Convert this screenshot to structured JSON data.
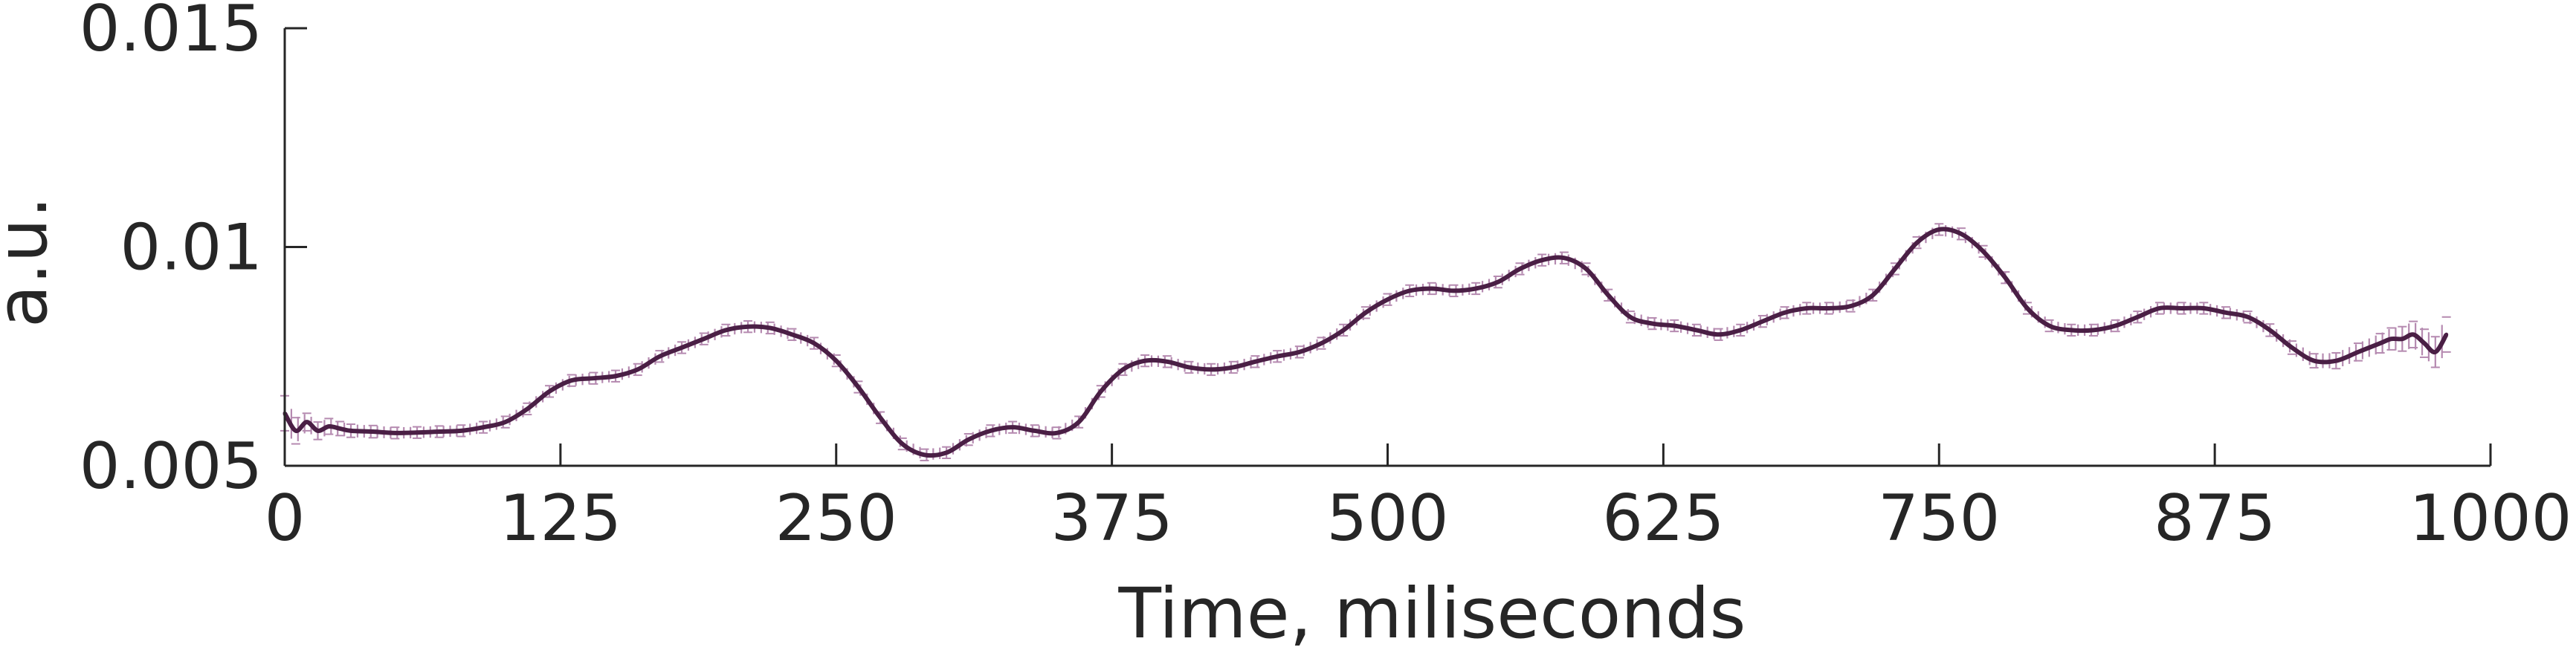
{
  "chart_data": {
    "type": "line",
    "title": "",
    "xlabel": "Time, miliseconds",
    "ylabel": "a.u.",
    "xlim": [
      0,
      1000
    ],
    "ylim": [
      0.005,
      0.015
    ],
    "x_ticks": [
      0,
      125,
      250,
      375,
      500,
      625,
      750,
      875,
      1000
    ],
    "x_tick_labels": [
      "0",
      "125",
      "250",
      "375",
      "500",
      "625",
      "750",
      "875",
      "1000"
    ],
    "y_ticks": [
      0.005,
      0.01,
      0.015
    ],
    "y_tick_labels": [
      "0.005",
      "0.01",
      "0.015"
    ],
    "grid": false,
    "legend": "none",
    "error_bars": true,
    "line_color": "#4a1f45",
    "error_bar_color": "#b58ab0",
    "axis_color": "#262626",
    "series": [
      {
        "x": [
          0,
          5,
          10,
          15,
          20,
          25,
          30,
          40,
          50,
          60,
          70,
          80,
          90,
          100,
          110,
          120,
          130,
          140,
          150,
          160,
          170,
          180,
          190,
          200,
          210,
          220,
          230,
          240,
          250,
          260,
          270,
          280,
          290,
          300,
          310,
          320,
          330,
          340,
          350,
          360,
          370,
          380,
          390,
          400,
          410,
          420,
          430,
          440,
          450,
          460,
          470,
          480,
          490,
          500,
          510,
          520,
          530,
          540,
          550,
          560,
          570,
          580,
          590,
          600,
          610,
          620,
          630,
          640,
          650,
          660,
          670,
          680,
          690,
          700,
          710,
          720,
          730,
          740,
          750,
          760,
          770,
          780,
          790,
          800,
          810,
          820,
          830,
          840,
          850,
          860,
          870,
          880,
          890,
          900,
          910,
          920,
          930,
          940,
          950,
          955,
          960,
          965,
          970,
          975,
          980
        ],
        "y": [
          0.0062,
          0.0058,
          0.006,
          0.0058,
          0.0059,
          0.00585,
          0.0058,
          0.00578,
          0.00575,
          0.00576,
          0.00578,
          0.0058,
          0.00588,
          0.006,
          0.0063,
          0.0067,
          0.00695,
          0.007,
          0.00705,
          0.0072,
          0.0075,
          0.0077,
          0.0079,
          0.0081,
          0.00818,
          0.00815,
          0.008,
          0.0078,
          0.0074,
          0.0068,
          0.0061,
          0.0055,
          0.00525,
          0.0053,
          0.0056,
          0.0058,
          0.00588,
          0.0058,
          0.00575,
          0.006,
          0.0067,
          0.0072,
          0.0074,
          0.00738,
          0.00725,
          0.0072,
          0.00725,
          0.00738,
          0.0075,
          0.0076,
          0.0078,
          0.0081,
          0.0085,
          0.0088,
          0.009,
          0.00905,
          0.009,
          0.00905,
          0.0092,
          0.0095,
          0.0097,
          0.00975,
          0.0095,
          0.0089,
          0.0084,
          0.00825,
          0.0082,
          0.0081,
          0.008,
          0.0081,
          0.0083,
          0.0085,
          0.0086,
          0.0086,
          0.00865,
          0.0089,
          0.0095,
          0.0101,
          0.0104,
          0.0103,
          0.0099,
          0.0093,
          0.0086,
          0.0082,
          0.0081,
          0.0081,
          0.0082,
          0.0084,
          0.0086,
          0.0086,
          0.0086,
          0.0085,
          0.0084,
          0.0081,
          0.0077,
          0.0074,
          0.0074,
          0.0076,
          0.0078,
          0.0079,
          0.0079,
          0.008,
          0.0078,
          0.0076,
          0.008
        ],
        "error": [
          0.0004,
          0.0003,
          0.0002,
          0.0002,
          0.00018,
          0.00016,
          0.00015,
          0.00014,
          0.00013,
          0.00013,
          0.00013,
          0.00013,
          0.00013,
          0.00013,
          0.00013,
          0.00013,
          0.00013,
          0.00013,
          0.00013,
          0.00013,
          0.00013,
          0.00013,
          0.00013,
          0.00013,
          0.00013,
          0.00013,
          0.00013,
          0.00013,
          0.00013,
          0.00013,
          0.00013,
          0.00013,
          0.00013,
          0.00013,
          0.00013,
          0.00013,
          0.00013,
          0.00013,
          0.00013,
          0.00013,
          0.00013,
          0.00013,
          0.00013,
          0.00013,
          0.00013,
          0.00013,
          0.00013,
          0.00013,
          0.00013,
          0.00013,
          0.00013,
          0.00013,
          0.00013,
          0.00013,
          0.00013,
          0.00013,
          0.00013,
          0.00013,
          0.00013,
          0.00013,
          0.00013,
          0.00013,
          0.00013,
          0.00013,
          0.00013,
          0.00013,
          0.00013,
          0.00013,
          0.00013,
          0.00013,
          0.00013,
          0.00013,
          0.00013,
          0.00013,
          0.00013,
          0.00013,
          0.00013,
          0.00013,
          0.00013,
          0.00013,
          0.00013,
          0.00013,
          0.00013,
          0.00013,
          0.00013,
          0.00013,
          0.00013,
          0.00013,
          0.00013,
          0.00013,
          0.00013,
          0.00013,
          0.00013,
          0.00014,
          0.00015,
          0.00016,
          0.00018,
          0.0002,
          0.00022,
          0.00025,
          0.00028,
          0.0003,
          0.00032,
          0.00035,
          0.0004
        ]
      }
    ]
  }
}
